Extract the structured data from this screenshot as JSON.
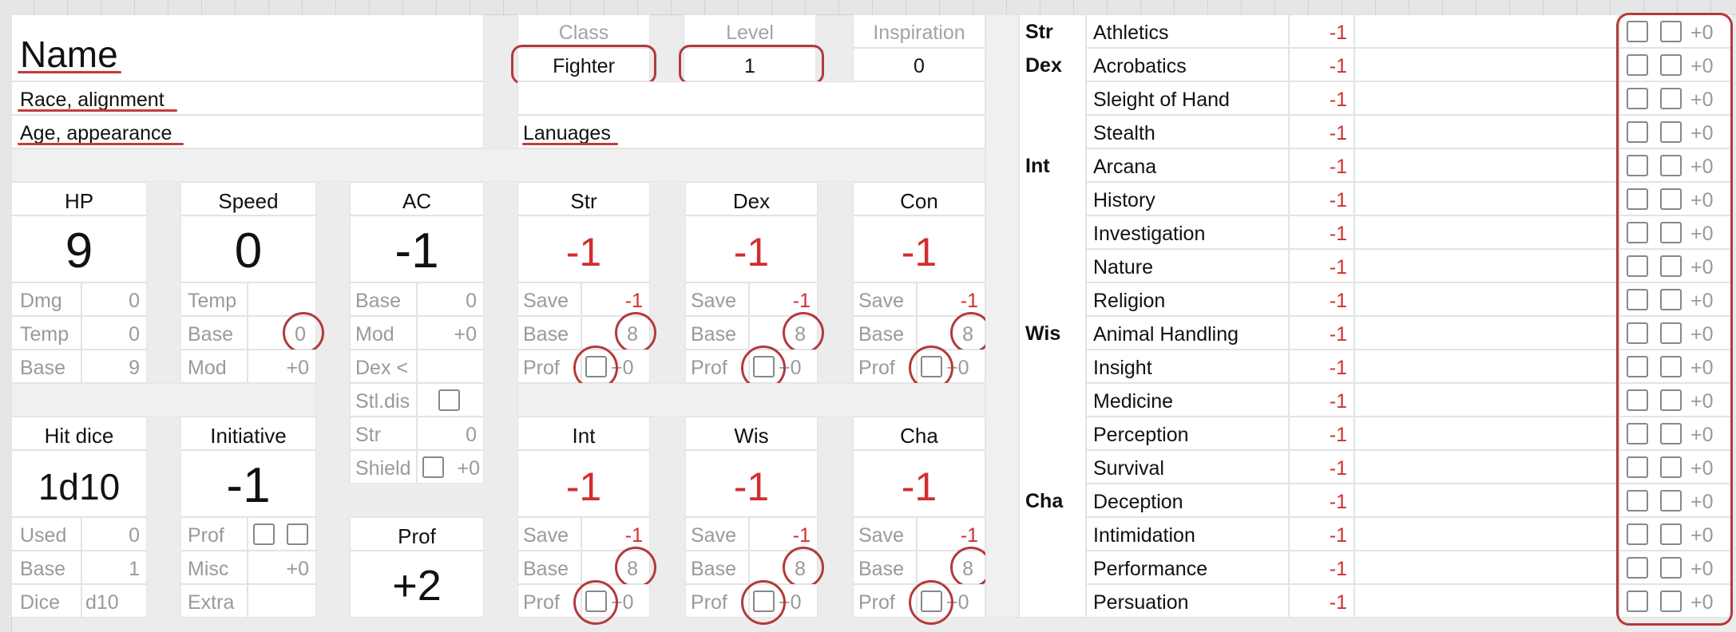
{
  "sheet": {
    "name": "Name",
    "race_alignment": "Race, alignment",
    "age_appearance": "Age, appearance",
    "languages": "Lanuages"
  },
  "info": {
    "class_label": "Class",
    "class_value": "Fighter",
    "level_label": "Level",
    "level_value": "1",
    "inspiration_label": "Inspiration",
    "inspiration_value": "0"
  },
  "hp": {
    "title": "HP",
    "value": "9",
    "rows": [
      [
        "Dmg",
        "0"
      ],
      [
        "Temp",
        "0"
      ],
      [
        "Base",
        "9"
      ]
    ]
  },
  "speed": {
    "title": "Speed",
    "value": "0",
    "rows": [
      [
        "Temp",
        ""
      ],
      [
        "Base",
        "0"
      ],
      [
        "Mod",
        "+0"
      ]
    ]
  },
  "ac": {
    "title": "AC",
    "value": "-1",
    "rows": [
      [
        "Base",
        "0"
      ],
      [
        "Mod",
        "+0"
      ],
      [
        "Dex <",
        ""
      ]
    ],
    "stealth_label": "Stl.dis",
    "str_label": "Str",
    "str_value": "0",
    "shield_label": "Shield",
    "shield_mod": "+0"
  },
  "hit_dice": {
    "title": "Hit dice",
    "value": "1d10",
    "rows": [
      [
        "Used",
        "0"
      ],
      [
        "Base",
        "1"
      ],
      [
        "Dice",
        "d10"
      ]
    ]
  },
  "initiative": {
    "title": "Initiative",
    "value": "-1",
    "prof_label": "Prof",
    "misc_label": "Misc",
    "misc_value": "+0",
    "extra_label": "Extra"
  },
  "prof": {
    "title": "Prof",
    "value": "+2"
  },
  "abilities": [
    {
      "title": "Str",
      "value": "-1",
      "save_label": "Save",
      "save": "-1",
      "base_label": "Base",
      "base": "8",
      "prof_label": "Prof",
      "prof_mod": "+0"
    },
    {
      "title": "Dex",
      "value": "-1",
      "save_label": "Save",
      "save": "-1",
      "base_label": "Base",
      "base": "8",
      "prof_label": "Prof",
      "prof_mod": "+0"
    },
    {
      "title": "Con",
      "value": "-1",
      "save_label": "Save",
      "save": "-1",
      "base_label": "Base",
      "base": "8",
      "prof_label": "Prof",
      "prof_mod": "+0"
    },
    {
      "title": "Int",
      "value": "-1",
      "save_label": "Save",
      "save": "-1",
      "base_label": "Base",
      "base": "8",
      "prof_label": "Prof",
      "prof_mod": "+0"
    },
    {
      "title": "Wis",
      "value": "-1",
      "save_label": "Save",
      "save": "-1",
      "base_label": "Base",
      "base": "8",
      "prof_label": "Prof",
      "prof_mod": "+0"
    },
    {
      "title": "Cha",
      "value": "-1",
      "save_label": "Save",
      "save": "-1",
      "base_label": "Base",
      "base": "8",
      "prof_label": "Prof",
      "prof_mod": "+0"
    }
  ],
  "skills": [
    {
      "ability": "Str",
      "name": "Athletics",
      "value": "-1",
      "mod": "+0"
    },
    {
      "ability": "Dex",
      "name": "Acrobatics",
      "value": "-1",
      "mod": "+0"
    },
    {
      "ability": "",
      "name": "Sleight of Hand",
      "value": "-1",
      "mod": "+0"
    },
    {
      "ability": "",
      "name": "Stealth",
      "value": "-1",
      "mod": "+0"
    },
    {
      "ability": "Int",
      "name": "Arcana",
      "value": "-1",
      "mod": "+0"
    },
    {
      "ability": "",
      "name": "History",
      "value": "-1",
      "mod": "+0"
    },
    {
      "ability": "",
      "name": "Investigation",
      "value": "-1",
      "mod": "+0"
    },
    {
      "ability": "",
      "name": "Nature",
      "value": "-1",
      "mod": "+0"
    },
    {
      "ability": "",
      "name": "Religion",
      "value": "-1",
      "mod": "+0"
    },
    {
      "ability": "Wis",
      "name": "Animal Handling",
      "value": "-1",
      "mod": "+0"
    },
    {
      "ability": "",
      "name": "Insight",
      "value": "-1",
      "mod": "+0"
    },
    {
      "ability": "",
      "name": "Medicine",
      "value": "-1",
      "mod": "+0"
    },
    {
      "ability": "",
      "name": "Perception",
      "value": "-1",
      "mod": "+0"
    },
    {
      "ability": "",
      "name": "Survival",
      "value": "-1",
      "mod": "+0"
    },
    {
      "ability": "Cha",
      "name": "Deception",
      "value": "-1",
      "mod": "+0"
    },
    {
      "ability": "",
      "name": "Intimidation",
      "value": "-1",
      "mod": "+0"
    },
    {
      "ability": "",
      "name": "Performance",
      "value": "-1",
      "mod": "+0"
    },
    {
      "ability": "",
      "name": "Persuation",
      "value": "-1",
      "mod": "+0"
    }
  ],
  "colors": {
    "value_red": "#d22e2e",
    "annotation_red": "#b33a3a",
    "label_gray": "#9a9a9a"
  }
}
